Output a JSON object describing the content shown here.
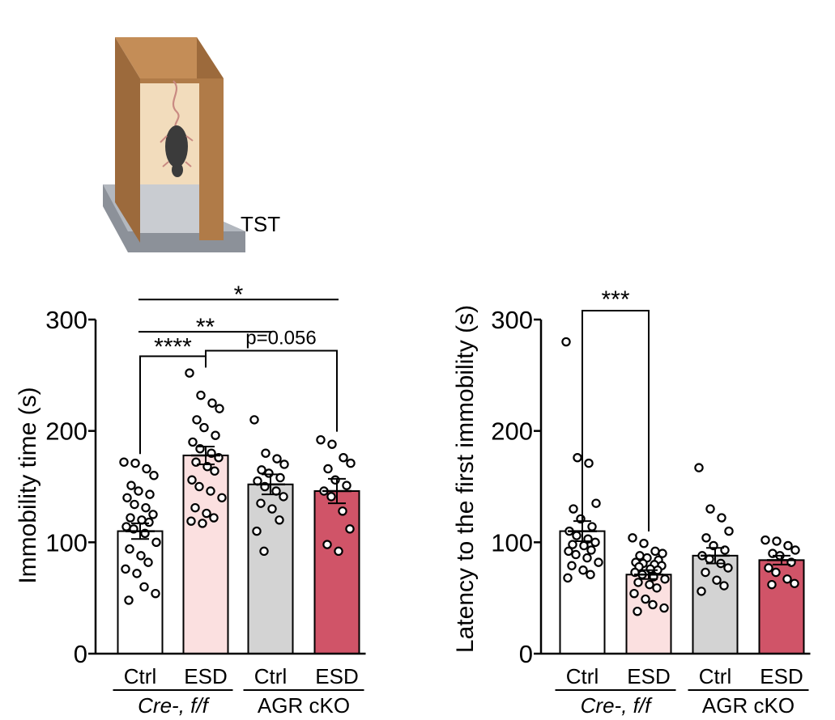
{
  "illustration": {
    "label": "TST",
    "colors": {
      "wood_front": "#b07b48",
      "wood_side": "#9c6a3c",
      "wood_top": "#c48d57",
      "interior": "#f2dcbc",
      "floor": "#8c9199",
      "floor_top": "#b3b8bf",
      "mouse": "#3b3b3b",
      "tail": "#c98a82"
    }
  },
  "chart_data": [
    {
      "type": "bar",
      "categories": [
        "Ctrl",
        "ESD",
        "Ctrl",
        "ESD"
      ],
      "groups": [
        {
          "label": "Cre-, f/f",
          "italic": true,
          "categories": [
            0,
            1
          ]
        },
        {
          "label": "AGR cKO",
          "italic": false,
          "categories": [
            2,
            3
          ]
        }
      ],
      "means": [
        110,
        178,
        152,
        146
      ],
      "sem": [
        7,
        8,
        9,
        11
      ],
      "bar_colors": [
        "#ffffff",
        "#fbe0e0",
        "#d3d3d3",
        "#d05468"
      ],
      "points": [
        [
          172,
          171,
          166,
          160,
          151,
          146,
          143,
          140,
          134,
          131,
          125,
          122,
          120,
          118,
          114,
          112,
          108,
          100,
          94,
          88,
          82,
          76,
          72,
          60,
          54,
          48
        ],
        [
          252,
          232,
          225,
          220,
          210,
          203,
          196,
          190,
          184,
          180,
          176,
          172,
          168,
          164,
          156,
          150,
          146,
          140,
          131,
          126,
          122,
          119,
          117
        ],
        [
          210,
          180,
          175,
          170,
          165,
          162,
          158,
          155,
          150,
          146,
          141,
          135,
          130,
          120,
          110,
          92
        ],
        [
          192,
          188,
          176,
          171,
          166,
          156,
          151,
          146,
          141,
          128,
          112,
          98,
          92
        ]
      ],
      "ylabel": "Immobility time (s)",
      "ylim": [
        0,
        300
      ],
      "yticks": [
        0,
        100,
        200,
        300
      ],
      "significance": [
        {
          "label": "****",
          "from": 0,
          "to": 1,
          "level": 267
        },
        {
          "label": "**",
          "from": 0,
          "to": 2,
          "level": 289
        },
        {
          "label": "*",
          "from": 0,
          "to": 3,
          "level": 318
        },
        {
          "label": "p=0.056",
          "from": 1,
          "to": 3,
          "level": 272
        }
      ]
    },
    {
      "type": "bar",
      "categories": [
        "Ctrl",
        "ESD",
        "Ctrl",
        "ESD"
      ],
      "groups": [
        {
          "label": "Cre-, f/f",
          "italic": true,
          "categories": [
            0,
            1
          ]
        },
        {
          "label": "AGR cKO",
          "italic": false,
          "categories": [
            2,
            3
          ]
        }
      ],
      "means": [
        110,
        71,
        88,
        84
      ],
      "sem": [
        9,
        4,
        7,
        4
      ],
      "bar_colors": [
        "#ffffff",
        "#fbe0e0",
        "#d3d3d3",
        "#d05468"
      ],
      "points": [
        [
          280,
          176,
          171,
          135,
          130,
          121,
          114,
          110,
          106,
          103,
          100,
          98,
          97,
          93,
          92,
          89,
          86,
          82,
          79,
          75,
          71,
          68
        ],
        [
          104,
          99,
          92,
          90,
          88,
          86,
          84,
          82,
          81,
          80,
          79,
          78,
          76,
          75,
          73,
          71,
          69,
          67,
          64,
          62,
          59,
          54,
          49,
          44,
          41,
          38
        ],
        [
          167,
          130,
          122,
          110,
          104,
          97,
          93,
          88,
          85,
          81,
          77,
          73,
          66,
          61,
          56
        ],
        [
          102,
          101,
          97,
          93,
          90,
          88,
          82,
          77,
          73,
          67,
          63,
          62
        ]
      ],
      "ylabel": "Latency to the first immobility (s)",
      "ylim": [
        0,
        300
      ],
      "yticks": [
        0,
        100,
        200,
        300
      ],
      "significance": [
        {
          "label": "***",
          "from": 0,
          "to": 1,
          "level": 308,
          "open": true
        }
      ]
    }
  ]
}
